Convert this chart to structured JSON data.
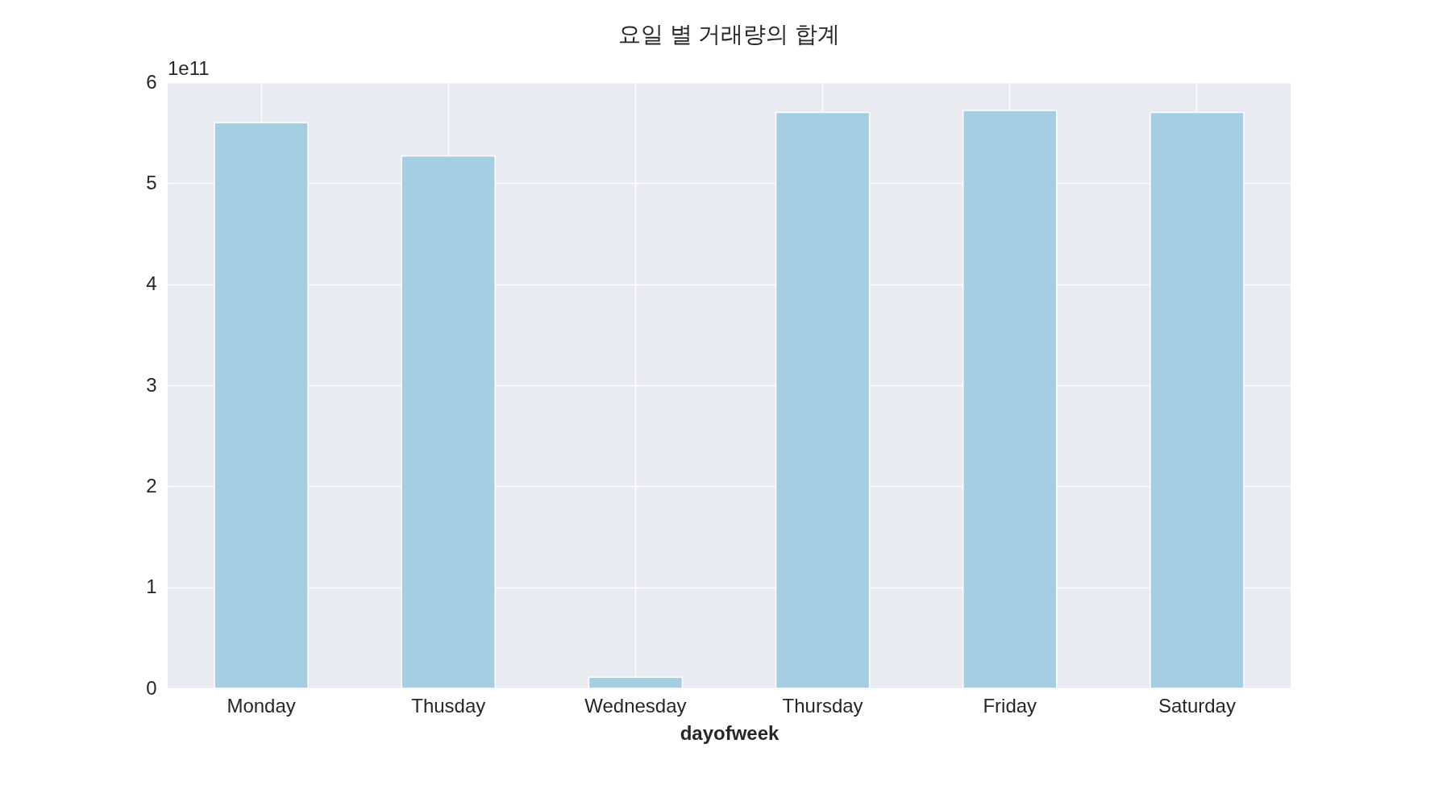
{
  "chart_data": {
    "type": "bar",
    "title": "요일 별 거래량의 합계",
    "xlabel": "dayofweek",
    "categories": [
      "Monday",
      "Thusday",
      "Wednesday",
      "Thursday",
      "Friday",
      "Saturday"
    ],
    "values": [
      5.6,
      5.27,
      0.11,
      5.7,
      5.72,
      5.7
    ],
    "color": "#a6cee3",
    "ylim": [
      0,
      6
    ],
    "yticks": [
      0,
      1,
      2,
      3,
      4,
      5,
      6
    ],
    "grid": true,
    "annotations": [
      "1e11"
    ]
  }
}
